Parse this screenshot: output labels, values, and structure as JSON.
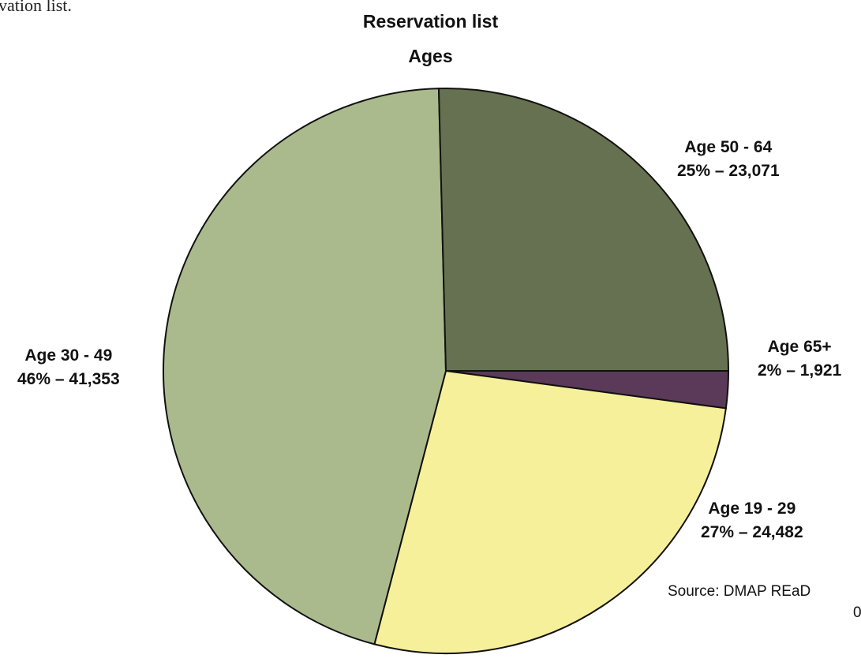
{
  "header_fragment": "vation list.",
  "chart_data": {
    "type": "pie",
    "title": "Reservation list",
    "subtitle": "Ages",
    "slices": [
      {
        "label": "Age 65+",
        "percent_label": "2%",
        "count_label": "1,921",
        "value": 1921,
        "color": "#5a3a58"
      },
      {
        "label": "Age 19 - 29",
        "percent_label": "27%",
        "count_label": "24,482",
        "value": 24482,
        "color": "#f7f09a"
      },
      {
        "label": "Age 30 - 49",
        "percent_label": "46%",
        "count_label": "41,353",
        "value": 41353,
        "color": "#abba8c"
      },
      {
        "label": "Age 50 - 64",
        "percent_label": "25%",
        "count_label": "23,071",
        "value": 23071,
        "color": "#657150"
      }
    ],
    "start": "3 o'clock",
    "direction": "clockwise",
    "legend": "none",
    "source": "Source: DMAP REaD",
    "source_suffix": "0"
  }
}
